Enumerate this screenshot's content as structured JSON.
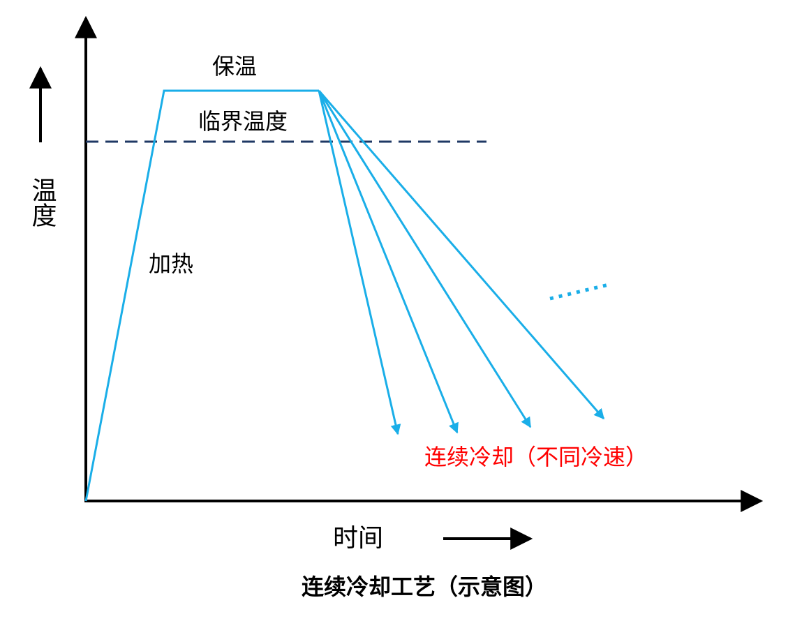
{
  "diagram": {
    "title": "连续冷却工艺（示意图）",
    "y_axis_label": "温度",
    "x_axis_label": "时间",
    "hold_label": "保温",
    "critical_label": "临界温度",
    "heating_label": "加热",
    "cooling_label": "连续冷却（不同冷速）"
  }
}
